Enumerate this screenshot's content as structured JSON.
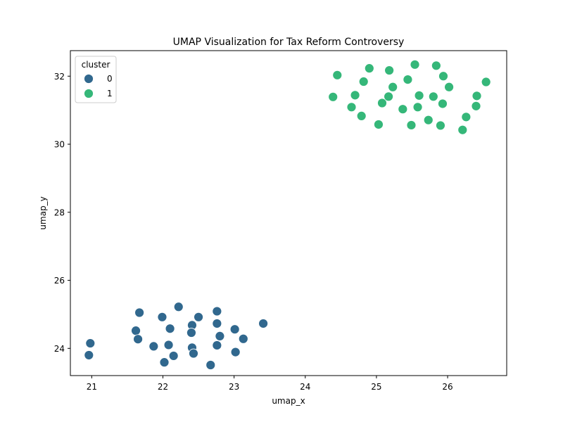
{
  "chart_data": {
    "type": "scatter",
    "title": "UMAP Visualization for Tax Reform Controversy",
    "xlabel": "umap_x",
    "ylabel": "umap_y",
    "xlim": [
      20.7,
      26.83
    ],
    "ylim": [
      23.2,
      32.75
    ],
    "xticks": [
      21,
      22,
      23,
      24,
      25,
      26
    ],
    "yticks": [
      24,
      26,
      28,
      30,
      32
    ],
    "grid": false,
    "legend": {
      "title": "cluster",
      "placement": "top-left"
    },
    "series": [
      {
        "name": "0",
        "color": "#31688e",
        "points": [
          [
            20.98,
            24.15
          ],
          [
            20.96,
            23.8
          ],
          [
            21.67,
            25.05
          ],
          [
            21.62,
            24.52
          ],
          [
            21.65,
            24.27
          ],
          [
            21.87,
            24.06
          ],
          [
            21.99,
            24.92
          ],
          [
            22.02,
            23.59
          ],
          [
            22.1,
            24.58
          ],
          [
            22.08,
            24.1
          ],
          [
            22.15,
            23.78
          ],
          [
            22.22,
            25.22
          ],
          [
            22.41,
            24.68
          ],
          [
            22.4,
            24.46
          ],
          [
            22.41,
            24.02
          ],
          [
            22.43,
            23.85
          ],
          [
            22.5,
            24.92
          ],
          [
            22.67,
            23.51
          ],
          [
            22.76,
            25.09
          ],
          [
            22.76,
            24.73
          ],
          [
            22.76,
            24.09
          ],
          [
            22.8,
            24.36
          ],
          [
            23.01,
            24.56
          ],
          [
            23.02,
            23.89
          ],
          [
            23.13,
            24.28
          ],
          [
            23.41,
            24.73
          ]
        ]
      },
      {
        "name": "1",
        "color": "#35b779",
        "points": [
          [
            24.39,
            31.39
          ],
          [
            24.45,
            32.03
          ],
          [
            24.65,
            31.09
          ],
          [
            24.7,
            31.44
          ],
          [
            24.79,
            30.83
          ],
          [
            24.82,
            31.84
          ],
          [
            24.9,
            32.23
          ],
          [
            25.03,
            30.58
          ],
          [
            25.08,
            31.21
          ],
          [
            25.17,
            31.4
          ],
          [
            25.18,
            32.17
          ],
          [
            25.23,
            31.68
          ],
          [
            25.37,
            31.03
          ],
          [
            25.44,
            31.9
          ],
          [
            25.49,
            30.56
          ],
          [
            25.54,
            32.34
          ],
          [
            25.58,
            31.09
          ],
          [
            25.6,
            31.43
          ],
          [
            25.73,
            30.71
          ],
          [
            25.8,
            31.4
          ],
          [
            25.84,
            32.31
          ],
          [
            25.9,
            30.55
          ],
          [
            25.93,
            31.19
          ],
          [
            25.94,
            32.0
          ],
          [
            26.02,
            31.68
          ],
          [
            26.21,
            30.42
          ],
          [
            26.26,
            30.8
          ],
          [
            26.4,
            31.12
          ],
          [
            26.41,
            31.42
          ],
          [
            26.54,
            31.83
          ]
        ]
      }
    ]
  }
}
